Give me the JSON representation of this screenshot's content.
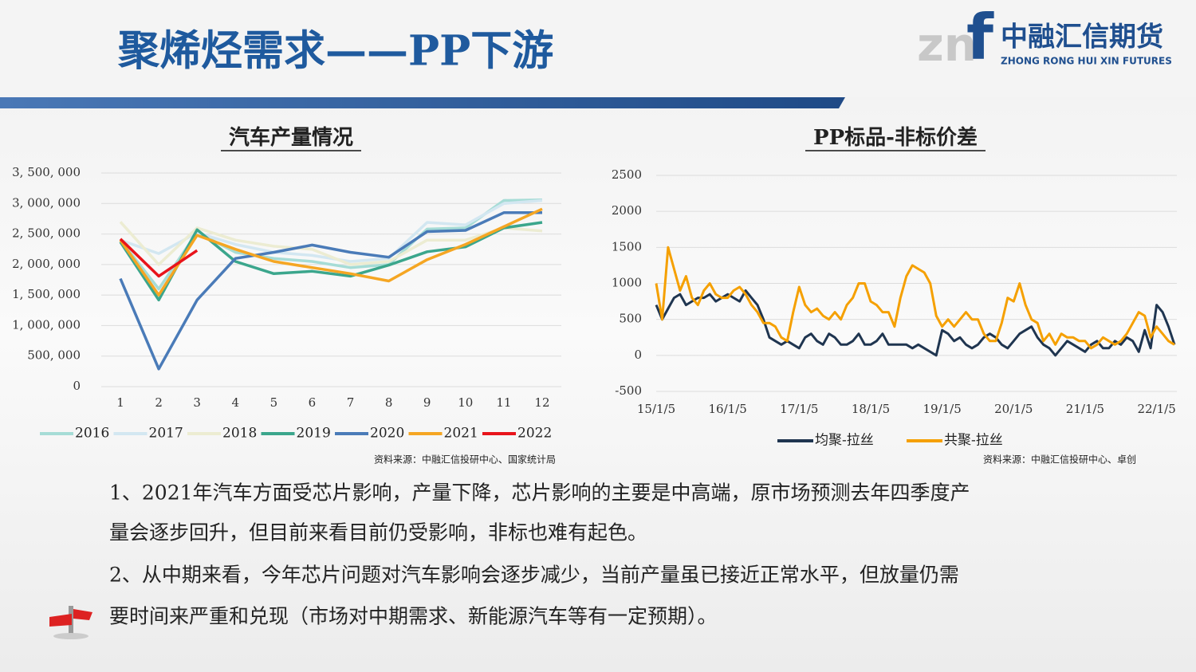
{
  "header": {
    "title": "聚烯烃需求——PP下游"
  },
  "logo": {
    "mark_a": "zn",
    "mark_b": "f",
    "name": "中融汇信期货",
    "name_en": "ZHONG RONG HUI XIN FUTURES"
  },
  "chart_data": [
    {
      "type": "line",
      "title": "汽车产量情况",
      "categories": [
        "1",
        "2",
        "3",
        "4",
        "5",
        "6",
        "7",
        "8",
        "9",
        "10",
        "11",
        "12"
      ],
      "ylim": [
        0,
        3500000
      ],
      "yticks": [
        0,
        {
          "value": 500000,
          "label": "500, 000"
        },
        {
          "value": 1000000,
          "label": "1, 000, 000"
        },
        {
          "value": 1500000,
          "label": "1, 500, 000"
        },
        {
          "value": 2000000,
          "label": "2, 000, 000"
        },
        {
          "value": 2500000,
          "label": "2, 500, 000"
        },
        {
          "value": 3000000,
          "label": "3, 000, 000"
        },
        {
          "value": 3500000,
          "label": "3, 500, 000"
        }
      ],
      "grid": true,
      "legend": "bottom",
      "series": [
        {
          "name": "2016",
          "color": "#a6dcd6",
          "values": [
            2400000,
            1600000,
            2530000,
            2200000,
            2100000,
            2050000,
            1950000,
            2000000,
            2580000,
            2600000,
            3050000,
            3060000
          ]
        },
        {
          "name": "2017",
          "color": "#d3e7f1",
          "values": [
            2400000,
            2180000,
            2520000,
            2330000,
            2200000,
            2150000,
            2050000,
            2100000,
            2690000,
            2650000,
            3000000,
            3050000
          ]
        },
        {
          "name": "2018",
          "color": "#ececd2",
          "values": [
            2700000,
            2000000,
            2600000,
            2400000,
            2300000,
            2250000,
            2000000,
            2050000,
            2400000,
            2400000,
            2600000,
            2550000
          ]
        },
        {
          "name": "2019",
          "color": "#3ba68c",
          "values": [
            2370000,
            1420000,
            2570000,
            2050000,
            1850000,
            1890000,
            1810000,
            1990000,
            2210000,
            2290000,
            2600000,
            2690000
          ]
        },
        {
          "name": "2020",
          "color": "#4a7bb8",
          "values": [
            1770000,
            290000,
            1420000,
            2100000,
            2200000,
            2320000,
            2200000,
            2120000,
            2540000,
            2560000,
            2850000,
            2850000
          ]
        },
        {
          "name": "2021",
          "color": "#f5a623",
          "values": [
            2400000,
            1500000,
            2480000,
            2250000,
            2050000,
            1950000,
            1850000,
            1730000,
            2080000,
            2330000,
            2620000,
            2910000
          ]
        },
        {
          "name": "2022",
          "color": "#e8141b",
          "values": [
            2420000,
            1810000,
            2230000,
            null,
            null,
            null,
            null,
            null,
            null,
            null,
            null,
            null
          ]
        }
      ],
      "source": "资料来源：中融汇信投研中心、国家统计局"
    },
    {
      "type": "line",
      "title": "PP标品-非标价差",
      "x": [
        "15/1/5",
        "15/2/5",
        "15/3/5",
        "15/4/5",
        "15/5/5",
        "15/6/5",
        "15/7/5",
        "15/8/5",
        "15/9/5",
        "15/10/5",
        "15/11/5",
        "15/12/5",
        "16/1/5",
        "16/2/5",
        "16/3/5",
        "16/4/5",
        "16/5/5",
        "16/6/5",
        "16/7/5",
        "16/8/5",
        "16/9/5",
        "16/10/5",
        "16/11/5",
        "16/12/5",
        "17/1/5",
        "17/2/5",
        "17/3/5",
        "17/4/5",
        "17/5/5",
        "17/6/5",
        "17/7/5",
        "17/8/5",
        "17/9/5",
        "17/10/5",
        "17/11/5",
        "17/12/5",
        "18/1/5",
        "18/2/5",
        "18/3/5",
        "18/4/5",
        "18/5/5",
        "18/6/5",
        "18/7/5",
        "18/8/5",
        "18/9/5",
        "18/10/5",
        "18/11/5",
        "18/12/5",
        "19/1/5",
        "19/2/5",
        "19/3/5",
        "19/4/5",
        "19/5/5",
        "19/6/5",
        "19/7/5",
        "19/8/5",
        "19/9/5",
        "19/10/5",
        "19/11/5",
        "19/12/5",
        "20/1/5",
        "20/2/5",
        "20/3/5",
        "20/4/5",
        "20/5/5",
        "20/6/5",
        "20/7/5",
        "20/8/5",
        "20/9/5",
        "20/10/5",
        "20/11/5",
        "20/12/5",
        "21/1/5",
        "21/2/5",
        "21/3/5",
        "21/4/5",
        "21/5/5",
        "21/6/5",
        "21/7/5",
        "21/8/5",
        "21/9/5",
        "21/10/5",
        "21/11/5",
        "21/12/5",
        "22/1/5",
        "22/2/5",
        "22/3/5",
        "22/4/5"
      ],
      "xticks": [
        "15/1/5",
        "16/1/5",
        "17/1/5",
        "18/1/5",
        "19/1/5",
        "20/1/5",
        "21/1/5",
        "22/1/5"
      ],
      "ylim": [
        -500,
        2500
      ],
      "yticks": [
        -500,
        0,
        500,
        1000,
        1500,
        2000,
        2500
      ],
      "grid": true,
      "legend": "bottom",
      "series": [
        {
          "name": "均聚-拉丝",
          "color": "#1f3550",
          "values": [
            700,
            500,
            650,
            800,
            850,
            700,
            750,
            800,
            800,
            850,
            750,
            800,
            850,
            800,
            750,
            900,
            800,
            700,
            500,
            250,
            200,
            150,
            200,
            150,
            100,
            250,
            300,
            200,
            150,
            300,
            250,
            150,
            150,
            200,
            300,
            150,
            150,
            200,
            300,
            150,
            150,
            150,
            150,
            100,
            150,
            100,
            50,
            0,
            350,
            300,
            200,
            250,
            150,
            100,
            150,
            250,
            300,
            250,
            150,
            100,
            200,
            300,
            350,
            400,
            250,
            150,
            100,
            0,
            100,
            200,
            150,
            100,
            50,
            150,
            200,
            100,
            100,
            200,
            150,
            250,
            200,
            50,
            350,
            100,
            700,
            600,
            400,
            150
          ]
        },
        {
          "name": "共聚-拉丝",
          "color": "#f5a000",
          "values": [
            1000,
            500,
            1500,
            1200,
            900,
            1100,
            800,
            700,
            900,
            1000,
            850,
            800,
            800,
            900,
            950,
            850,
            700,
            600,
            450,
            450,
            400,
            250,
            200,
            600,
            950,
            700,
            600,
            650,
            550,
            500,
            600,
            500,
            700,
            800,
            1000,
            1000,
            750,
            700,
            600,
            600,
            400,
            800,
            1100,
            1250,
            1200,
            1150,
            1000,
            550,
            400,
            500,
            400,
            500,
            600,
            500,
            500,
            300,
            200,
            200,
            450,
            800,
            750,
            1000,
            700,
            500,
            450,
            200,
            300,
            150,
            300,
            250,
            250,
            200,
            200,
            100,
            150,
            250,
            200,
            150,
            200,
            300,
            450,
            600,
            550,
            250,
            400,
            300,
            200,
            150
          ]
        }
      ],
      "source": "资料来源：中融汇信投研中心、卓创"
    }
  ],
  "text": {
    "lines": [
      "1、2021年汽车方面受芯片影响，产量下降，芯片影响的主要是中高端，原市场预测去年四季度产",
      "量会逐步回升，但目前来看目前仍受影响，非标也难有起色。",
      "2、从中期来看，今年芯片问题对汽车影响会逐步减少，当前产量虽已接近正常水平，但放量仍需",
      "要时间来严重和兑现（市场对中期需求、新能源汽车等有一定预期）。"
    ]
  }
}
